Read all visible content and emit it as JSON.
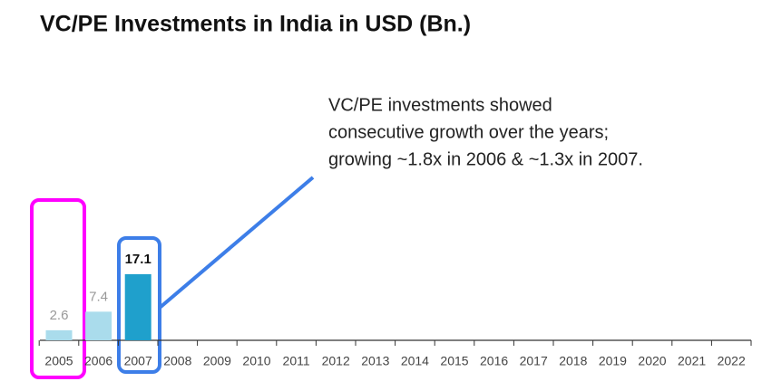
{
  "chart_data": {
    "type": "bar",
    "title": "VC/PE Investments in India in USD (Bn.)",
    "annotation": [
      "VC/PE investments showed",
      "consecutive growth over the years;",
      "growing ~1.8x in 2006 & ~1.3x in 2007."
    ],
    "categories": [
      "2005",
      "2006",
      "2007",
      "2008",
      "2009",
      "2010",
      "2011",
      "2012",
      "2013",
      "2014",
      "2015",
      "2016",
      "2017",
      "2018",
      "2019",
      "2020",
      "2021",
      "2022"
    ],
    "values": [
      2.6,
      7.4,
      17.1,
      null,
      null,
      null,
      null,
      null,
      null,
      null,
      null,
      null,
      null,
      null,
      null,
      null,
      null,
      null
    ],
    "colors": [
      "#aadcec",
      "#aadcec",
      "#1fa0cc",
      null,
      null,
      null,
      null,
      null,
      null,
      null,
      null,
      null,
      null,
      null,
      null,
      null,
      null,
      null
    ],
    "ylim": [
      0,
      40
    ]
  }
}
